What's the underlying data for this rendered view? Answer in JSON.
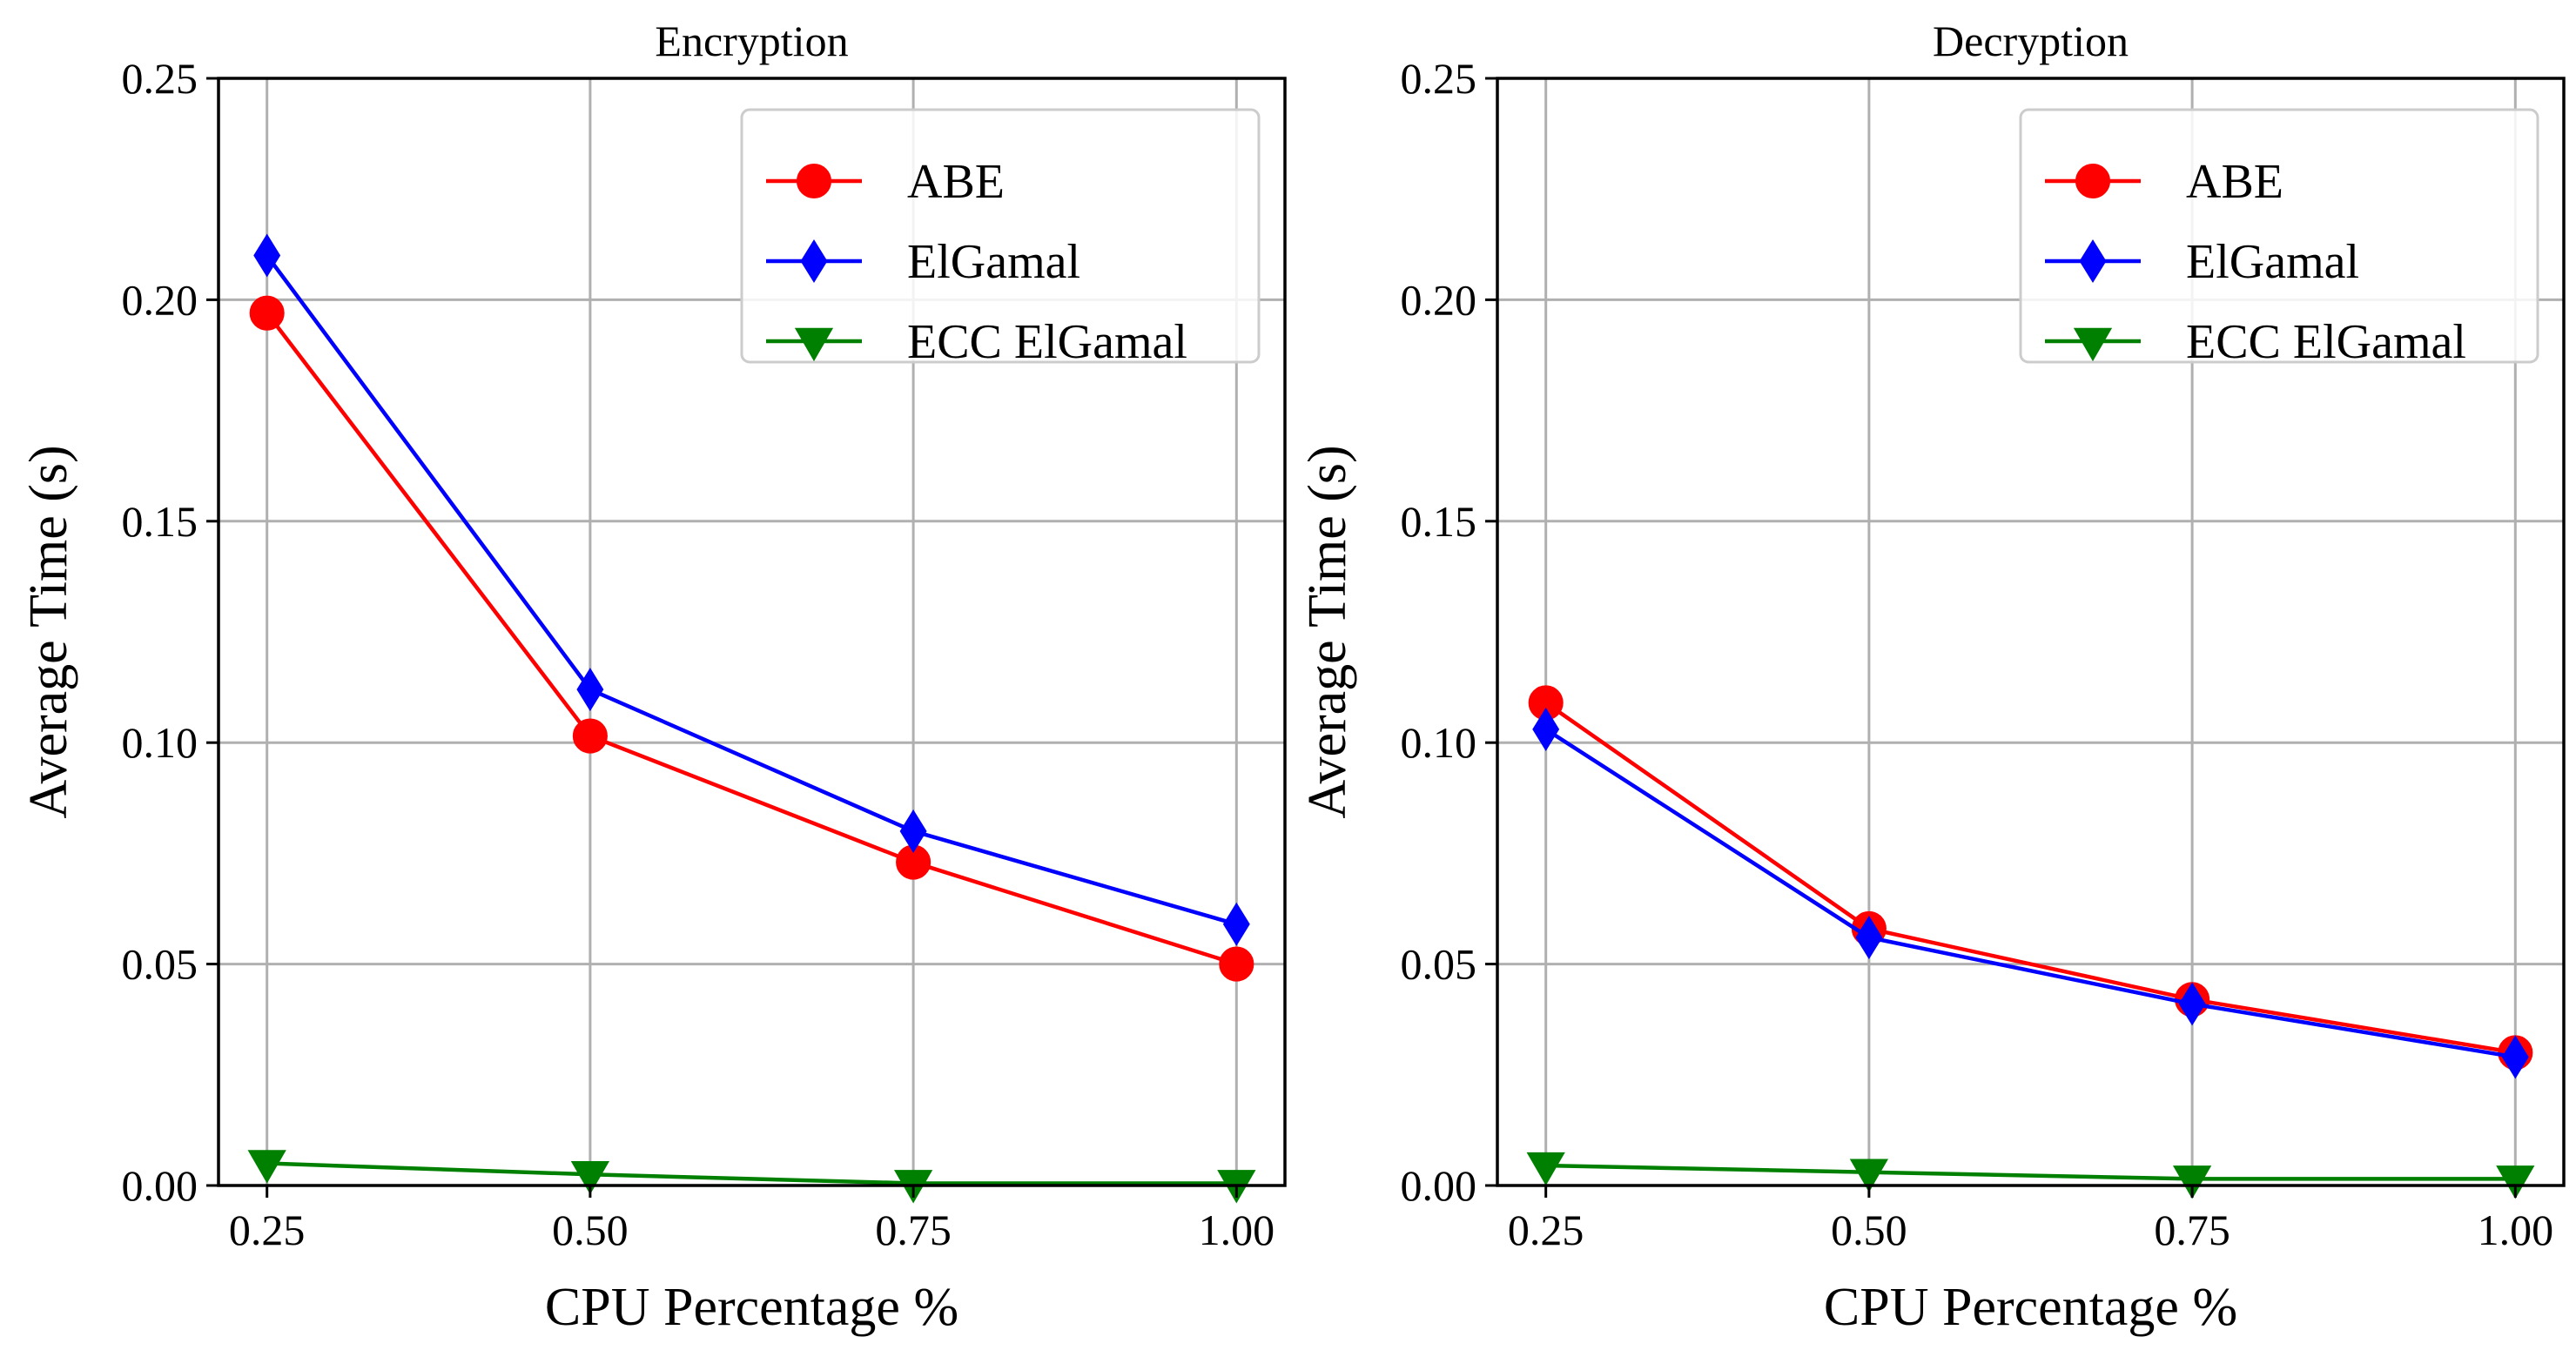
{
  "chart_data": [
    {
      "type": "line",
      "title": "Encryption",
      "xlabel": "CPU Percentage %",
      "ylabel": "Average Time (s)",
      "x": [
        0.25,
        0.5,
        0.75,
        1.0
      ],
      "xtick_labels": [
        "0.25",
        "0.50",
        "0.75",
        "1.00"
      ],
      "ytick_values": [
        0,
        0.05,
        0.1,
        0.15,
        0.2,
        0.25
      ],
      "ytick_labels": [
        "0.00",
        "0.05",
        "0.10",
        "0.15",
        "0.20",
        "0.25"
      ],
      "xlim": [
        0.2125,
        1.0375
      ],
      "ylim": [
        0,
        0.25
      ],
      "grid": true,
      "legend_position": "upper right",
      "series": [
        {
          "name": "ABE",
          "values": [
            0.197,
            0.1015,
            0.073,
            0.05
          ],
          "color": "#ff0000",
          "marker": "circle"
        },
        {
          "name": "ElGamal",
          "values": [
            0.21,
            0.112,
            0.08,
            0.059
          ],
          "color": "#0000ff",
          "marker": "diamond"
        },
        {
          "name": "ECC ElGamal",
          "values": [
            0.005,
            0.0025,
            0.0005,
            0.0005
          ],
          "color": "#008000",
          "marker": "triangle-down"
        }
      ]
    },
    {
      "type": "line",
      "title": "Decryption",
      "xlabel": "CPU Percentage %",
      "ylabel": "Average Time (s)",
      "x": [
        0.25,
        0.5,
        0.75,
        1.0
      ],
      "xtick_labels": [
        "0.25",
        "0.50",
        "0.75",
        "1.00"
      ],
      "ytick_values": [
        0,
        0.05,
        0.1,
        0.15,
        0.2,
        0.25
      ],
      "ytick_labels": [
        "0.00",
        "0.05",
        "0.10",
        "0.15",
        "0.20",
        "0.25"
      ],
      "xlim": [
        0.2125,
        1.0375
      ],
      "ylim": [
        0,
        0.25
      ],
      "grid": true,
      "legend_position": "upper right",
      "series": [
        {
          "name": "ABE",
          "values": [
            0.109,
            0.058,
            0.042,
            0.03
          ],
          "color": "#ff0000",
          "marker": "circle"
        },
        {
          "name": "ElGamal",
          "values": [
            0.103,
            0.056,
            0.041,
            0.029
          ],
          "color": "#0000ff",
          "marker": "diamond"
        },
        {
          "name": "ECC ElGamal",
          "values": [
            0.0045,
            0.003,
            0.0015,
            0.0015
          ],
          "color": "#008000",
          "marker": "triangle-down"
        }
      ]
    }
  ]
}
